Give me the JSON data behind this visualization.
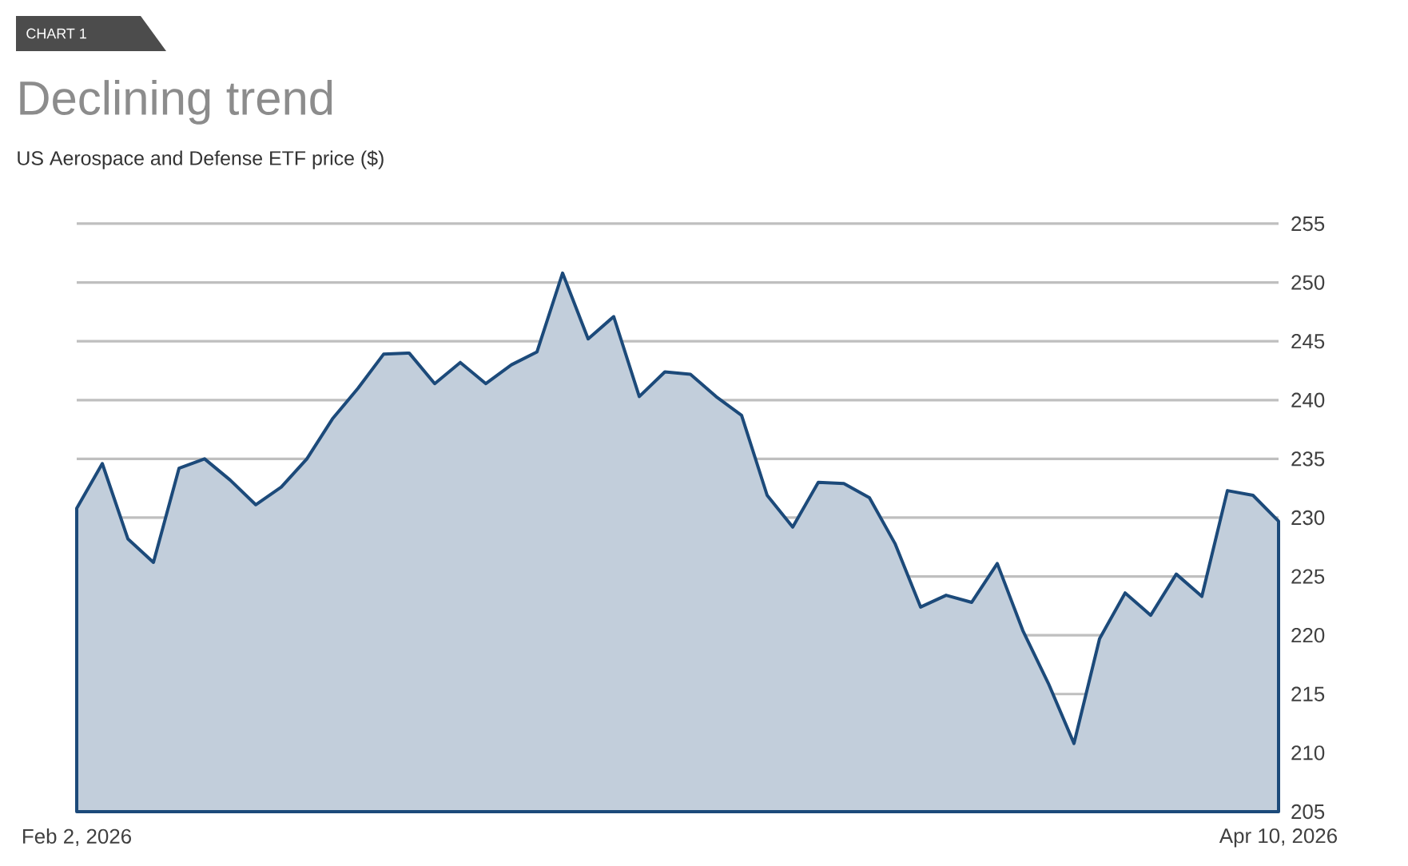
{
  "chart_data": {
    "type": "area",
    "title": "Declining trend",
    "subtitle": "US Aerospace and Defense ETF price ($)",
    "annotations": [
      "CHART 1"
    ],
    "categories": [
      "Feb 2, 2026",
      null,
      null,
      null,
      null,
      null,
      null,
      null,
      null,
      null,
      null,
      null,
      null,
      null,
      null,
      null,
      null,
      null,
      null,
      null,
      null,
      null,
      null,
      null,
      null,
      null,
      null,
      null,
      null,
      null,
      null,
      null,
      null,
      null,
      null,
      null,
      null,
      null,
      null,
      null,
      null,
      null,
      null,
      null,
      null,
      null,
      null,
      "Apr 10, 2026"
    ],
    "series": [
      {
        "color": "#1c4a7a",
        "values": [
          230.8,
          234.6,
          228.2,
          226.2,
          234.2,
          235.0,
          233.2,
          231.1,
          232.6,
          235.0,
          238.4,
          241.0,
          243.9,
          244.0,
          241.4,
          243.2,
          241.4,
          243.0,
          244.1,
          250.8,
          245.2,
          247.1,
          240.3,
          242.4,
          242.2,
          240.3,
          238.7,
          231.9,
          229.2,
          233.0,
          232.9,
          231.7,
          227.8,
          222.4,
          223.4,
          222.8,
          226.1,
          220.4,
          215.9,
          210.8,
          219.7,
          223.6,
          221.7,
          225.2,
          223.3,
          232.3,
          231.9,
          229.7
        ]
      }
    ],
    "ylim": [
      205,
      255
    ],
    "yticks": [
      205,
      210,
      215,
      220,
      225,
      230,
      235,
      240,
      245,
      250,
      255
    ],
    "grid": "y"
  }
}
